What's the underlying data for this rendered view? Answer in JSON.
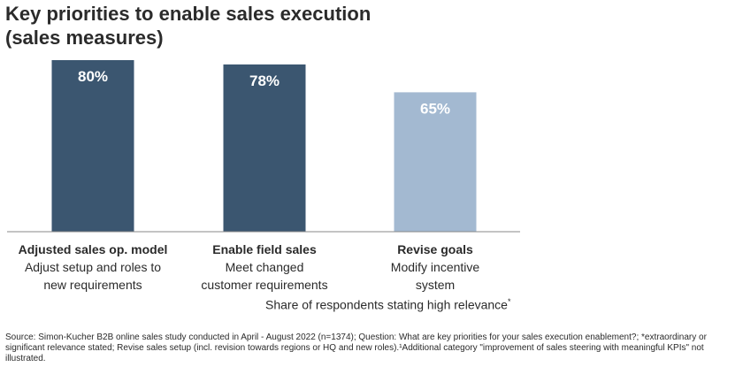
{
  "title": {
    "line1": "Key priorities to enable sales execution",
    "line2": "(sales measures)"
  },
  "chart_data": {
    "type": "bar",
    "categories": [
      "Adjusted sales op. model",
      "Enable field sales",
      "Revise goals"
    ],
    "descriptions": [
      [
        "Adjust setup and roles to",
        "new requirements"
      ],
      [
        "Meet changed",
        "customer requirements"
      ],
      [
        "Modify incentive",
        "system"
      ]
    ],
    "values": [
      80,
      78,
      65
    ],
    "value_labels": [
      "80%",
      "78%",
      "65%"
    ],
    "ylim": [
      0,
      100
    ],
    "colors": [
      "#3b5670",
      "#3b5670",
      "#a3b9d1"
    ],
    "grid": false
  },
  "share_note": {
    "text": "Share of respondents stating high relevance",
    "marker": "*"
  },
  "source": "Source: Simon-Kucher B2B online sales study conducted in April - August 2022 (n=1374); Question: What are key priorities for your sales execution enablement?; *extraordinary or significant relevance stated; Revise sales setup (incl. revision towards regions or HQ and new roles).¹Additional category \"improvement of sales steering with meaningful KPIs\" not illustrated."
}
